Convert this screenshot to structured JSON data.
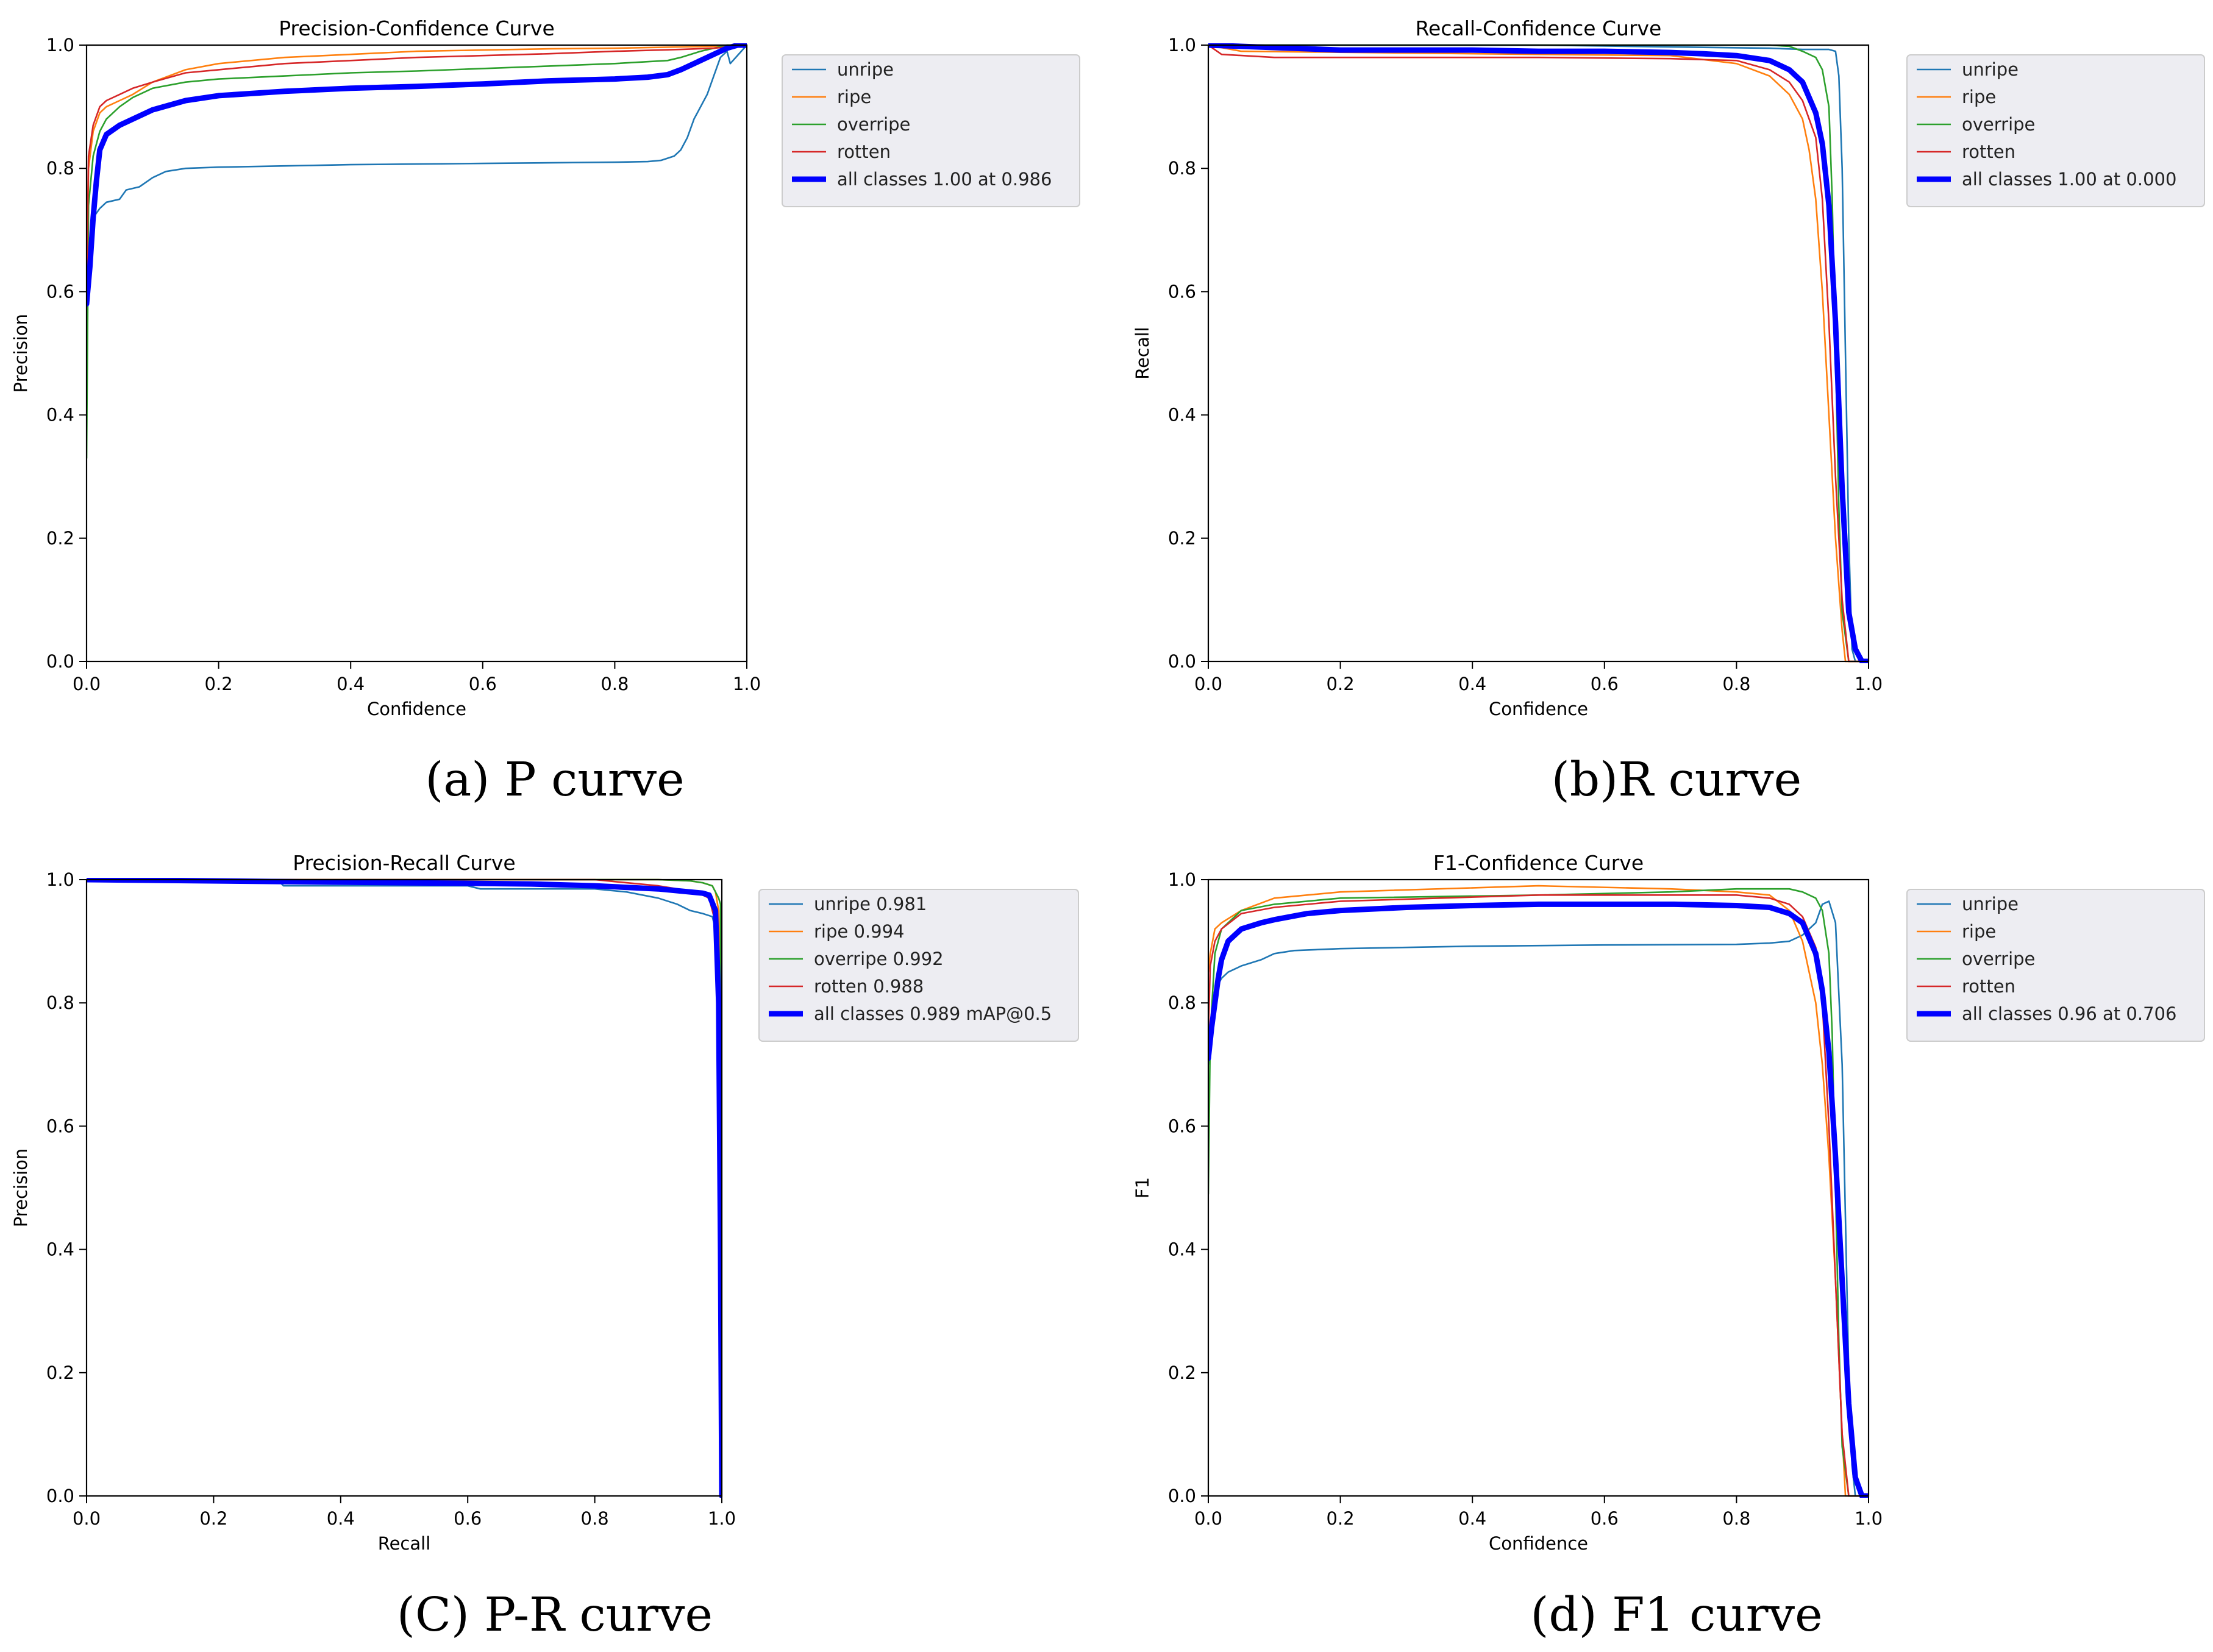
{
  "colors": {
    "unripe": "#1f77b4",
    "ripe": "#ff7f0e",
    "overripe": "#2ca02c",
    "rotten": "#d62728",
    "all": "#0000ff",
    "legend_bg": "#ededf2"
  },
  "chart_data": [
    {
      "id": "p",
      "type": "line",
      "title": "Precision-Confidence Curve",
      "xlabel": "Confidence",
      "ylabel": "Precision",
      "xlim": [
        0,
        1
      ],
      "ylim": [
        0,
        1
      ],
      "xticks": [
        "0.0",
        "0.2",
        "0.4",
        "0.6",
        "0.8",
        "1.0"
      ],
      "yticks": [
        "0.0",
        "0.2",
        "0.4",
        "0.6",
        "0.8",
        "1.0"
      ],
      "grid": false,
      "legend_position": "outside-right",
      "caption": "(a) P curve",
      "series": [
        {
          "name": "unripe",
          "color_key": "unripe",
          "bold": false,
          "x": [
            0,
            0.004,
            0.01,
            0.02,
            0.03,
            0.05,
            0.06,
            0.08,
            0.1,
            0.12,
            0.15,
            0.2,
            0.3,
            0.4,
            0.5,
            0.6,
            0.7,
            0.8,
            0.85,
            0.87,
            0.89,
            0.9,
            0.91,
            0.92,
            0.93,
            0.94,
            0.95,
            0.96,
            0.97,
            0.975,
            1.0
          ],
          "y": [
            0.58,
            0.68,
            0.72,
            0.735,
            0.745,
            0.75,
            0.765,
            0.77,
            0.785,
            0.795,
            0.8,
            0.802,
            0.804,
            0.806,
            0.807,
            0.808,
            0.809,
            0.81,
            0.811,
            0.813,
            0.82,
            0.83,
            0.85,
            0.88,
            0.9,
            0.92,
            0.95,
            0.98,
            0.99,
            0.97,
            1.0
          ]
        },
        {
          "name": "ripe",
          "color_key": "ripe",
          "bold": false,
          "x": [
            0,
            0.003,
            0.01,
            0.02,
            0.03,
            0.05,
            0.07,
            0.1,
            0.15,
            0.2,
            0.3,
            0.4,
            0.5,
            0.6,
            0.7,
            0.8,
            0.9,
            0.95,
            1.0
          ],
          "y": [
            0.6,
            0.8,
            0.86,
            0.89,
            0.9,
            0.91,
            0.92,
            0.94,
            0.96,
            0.97,
            0.98,
            0.985,
            0.99,
            0.992,
            0.994,
            0.995,
            0.997,
            0.998,
            1.0
          ]
        },
        {
          "name": "overripe",
          "color_key": "overripe",
          "bold": false,
          "x": [
            0,
            0.003,
            0.01,
            0.02,
            0.03,
            0.05,
            0.07,
            0.1,
            0.15,
            0.2,
            0.3,
            0.4,
            0.5,
            0.6,
            0.7,
            0.8,
            0.88,
            0.9,
            0.93,
            0.95,
            0.97,
            1.0
          ],
          "y": [
            0.33,
            0.74,
            0.82,
            0.86,
            0.88,
            0.9,
            0.915,
            0.93,
            0.94,
            0.945,
            0.95,
            0.955,
            0.958,
            0.962,
            0.966,
            0.97,
            0.975,
            0.98,
            0.99,
            0.995,
            1.0,
            1.0
          ]
        },
        {
          "name": "rotten",
          "color_key": "rotten",
          "bold": false,
          "x": [
            0,
            0.003,
            0.01,
            0.02,
            0.03,
            0.05,
            0.07,
            0.1,
            0.15,
            0.2,
            0.3,
            0.4,
            0.5,
            0.6,
            0.7,
            0.8,
            0.9,
            0.95,
            1.0
          ],
          "y": [
            0.6,
            0.82,
            0.87,
            0.9,
            0.91,
            0.92,
            0.93,
            0.94,
            0.955,
            0.96,
            0.97,
            0.975,
            0.98,
            0.983,
            0.986,
            0.99,
            0.993,
            0.995,
            1.0
          ]
        },
        {
          "name": "all classes 1.00 at 0.986",
          "color_key": "all",
          "bold": true,
          "x": [
            0,
            0.005,
            0.01,
            0.015,
            0.02,
            0.03,
            0.05,
            0.08,
            0.1,
            0.15,
            0.2,
            0.3,
            0.4,
            0.5,
            0.6,
            0.7,
            0.8,
            0.85,
            0.88,
            0.9,
            0.92,
            0.94,
            0.96,
            0.97,
            0.986,
            1.0
          ],
          "y": [
            0.58,
            0.64,
            0.72,
            0.78,
            0.83,
            0.855,
            0.87,
            0.885,
            0.895,
            0.91,
            0.918,
            0.925,
            0.93,
            0.933,
            0.937,
            0.942,
            0.945,
            0.948,
            0.952,
            0.96,
            0.97,
            0.98,
            0.99,
            0.995,
            1.0,
            1.0
          ]
        }
      ]
    },
    {
      "id": "r",
      "type": "line",
      "title": "Recall-Confidence Curve",
      "xlabel": "Confidence",
      "ylabel": "Recall",
      "xlim": [
        0,
        1
      ],
      "ylim": [
        0,
        1
      ],
      "xticks": [
        "0.0",
        "0.2",
        "0.4",
        "0.6",
        "0.8",
        "1.0"
      ],
      "yticks": [
        "0.0",
        "0.2",
        "0.4",
        "0.6",
        "0.8",
        "1.0"
      ],
      "grid": false,
      "legend_position": "outside-right",
      "caption": "(b)R curve",
      "series": [
        {
          "name": "unripe",
          "color_key": "unripe",
          "bold": false,
          "x": [
            0,
            0.5,
            0.85,
            0.9,
            0.92,
            0.94,
            0.95,
            0.955,
            0.96,
            0.965,
            0.97,
            0.975,
            0.98,
            1.0
          ],
          "y": [
            1.0,
            1.0,
            0.995,
            0.993,
            0.993,
            0.993,
            0.99,
            0.95,
            0.8,
            0.5,
            0.2,
            0.02,
            0.0,
            0.0
          ]
        },
        {
          "name": "ripe",
          "color_key": "ripe",
          "bold": false,
          "x": [
            0,
            0.05,
            0.5,
            0.7,
            0.8,
            0.85,
            0.88,
            0.9,
            0.91,
            0.92,
            0.93,
            0.94,
            0.95,
            0.96,
            0.965,
            1.0
          ],
          "y": [
            1.0,
            0.99,
            0.985,
            0.983,
            0.97,
            0.95,
            0.92,
            0.88,
            0.83,
            0.75,
            0.6,
            0.4,
            0.2,
            0.05,
            0.0,
            0.0
          ]
        },
        {
          "name": "overripe",
          "color_key": "overripe",
          "bold": false,
          "x": [
            0,
            0.5,
            0.8,
            0.85,
            0.88,
            0.9,
            0.92,
            0.93,
            0.94,
            0.945,
            0.95,
            0.955,
            0.96,
            0.97,
            1.0
          ],
          "y": [
            1.0,
            1.0,
            1.0,
            1.0,
            0.998,
            0.99,
            0.98,
            0.96,
            0.9,
            0.75,
            0.5,
            0.25,
            0.08,
            0.0,
            0.0
          ]
        },
        {
          "name": "rotten",
          "color_key": "rotten",
          "bold": false,
          "x": [
            0,
            0.02,
            0.1,
            0.5,
            0.7,
            0.8,
            0.85,
            0.88,
            0.9,
            0.92,
            0.93,
            0.94,
            0.95,
            0.96,
            0.97,
            1.0
          ],
          "y": [
            1.0,
            0.985,
            0.98,
            0.98,
            0.978,
            0.975,
            0.96,
            0.94,
            0.91,
            0.85,
            0.75,
            0.55,
            0.3,
            0.1,
            0.0,
            0.0
          ]
        },
        {
          "name": "all classes 1.00 at 0.000",
          "color_key": "all",
          "bold": true,
          "x": [
            0,
            0.2,
            0.4,
            0.5,
            0.6,
            0.7,
            0.75,
            0.8,
            0.85,
            0.88,
            0.9,
            0.92,
            0.93,
            0.94,
            0.95,
            0.96,
            0.97,
            0.98,
            0.99,
            1.0
          ],
          "y": [
            1.0,
            0.992,
            0.992,
            0.99,
            0.99,
            0.988,
            0.986,
            0.983,
            0.975,
            0.96,
            0.94,
            0.89,
            0.84,
            0.74,
            0.55,
            0.28,
            0.08,
            0.02,
            0.0,
            0.0
          ]
        }
      ]
    },
    {
      "id": "pr",
      "type": "line",
      "title": "Precision-Recall Curve",
      "xlabel": "Recall",
      "ylabel": "Precision",
      "xlim": [
        0,
        1
      ],
      "ylim": [
        0,
        1
      ],
      "xticks": [
        "0.0",
        "0.2",
        "0.4",
        "0.6",
        "0.8",
        "1.0"
      ],
      "yticks": [
        "0.0",
        "0.2",
        "0.4",
        "0.6",
        "0.8",
        "1.0"
      ],
      "grid": false,
      "legend_position": "outside-right",
      "caption": "(C) P-R curve",
      "series": [
        {
          "name": "unripe 0.981",
          "color_key": "unripe",
          "bold": false,
          "x": [
            0,
            0.3,
            0.31,
            0.6,
            0.62,
            0.8,
            0.85,
            0.9,
            0.93,
            0.95,
            0.97,
            0.985,
            0.995,
            1.0
          ],
          "y": [
            1.0,
            1.0,
            0.99,
            0.99,
            0.985,
            0.985,
            0.98,
            0.97,
            0.96,
            0.95,
            0.945,
            0.94,
            0.9,
            0.0
          ]
        },
        {
          "name": "ripe 0.994",
          "color_key": "ripe",
          "bold": false,
          "x": [
            0,
            0.5,
            0.8,
            0.9,
            0.95,
            0.97,
            0.985,
            0.99,
            0.995,
            0.998,
            1.0
          ],
          "y": [
            1.0,
            1.0,
            1.0,
            1.0,
            0.998,
            0.995,
            0.99,
            0.98,
            0.95,
            0.8,
            0.0
          ]
        },
        {
          "name": "overripe 0.992",
          "color_key": "overripe",
          "bold": false,
          "x": [
            0,
            0.5,
            0.8,
            0.9,
            0.95,
            0.97,
            0.985,
            0.995,
            0.998,
            1.0
          ],
          "y": [
            1.0,
            1.0,
            1.0,
            1.0,
            0.998,
            0.995,
            0.99,
            0.97,
            0.96,
            0.0
          ]
        },
        {
          "name": "rotten 0.988",
          "color_key": "rotten",
          "bold": false,
          "x": [
            0,
            0.5,
            0.8,
            0.85,
            0.9,
            0.93,
            0.95,
            0.97,
            0.98,
            0.99,
            0.993,
            0.997,
            1.0
          ],
          "y": [
            1.0,
            1.0,
            1.0,
            0.995,
            0.99,
            0.985,
            0.98,
            0.975,
            0.97,
            0.93,
            0.88,
            0.73,
            0.0
          ]
        },
        {
          "name": "all classes 0.989 mAP@0.5",
          "color_key": "all",
          "bold": true,
          "x": [
            0,
            0.5,
            0.7,
            0.8,
            0.9,
            0.95,
            0.97,
            0.98,
            0.99,
            0.995,
            0.998,
            1.0
          ],
          "y": [
            1.0,
            0.995,
            0.993,
            0.99,
            0.985,
            0.98,
            0.978,
            0.975,
            0.95,
            0.8,
            0.4,
            0.0
          ]
        }
      ]
    },
    {
      "id": "f1",
      "type": "line",
      "title": "F1-Confidence Curve",
      "xlabel": "Confidence",
      "ylabel": "F1",
      "xlim": [
        0,
        1
      ],
      "ylim": [
        0,
        1
      ],
      "xticks": [
        "0.0",
        "0.2",
        "0.4",
        "0.6",
        "0.8",
        "1.0"
      ],
      "yticks": [
        "0.0",
        "0.2",
        "0.4",
        "0.6",
        "0.8",
        "1.0"
      ],
      "grid": false,
      "legend_position": "outside-right",
      "caption": "(d) F1 curve",
      "series": [
        {
          "name": "unripe",
          "color_key": "unripe",
          "bold": false,
          "x": [
            0,
            0.005,
            0.01,
            0.02,
            0.03,
            0.05,
            0.08,
            0.1,
            0.13,
            0.2,
            0.4,
            0.6,
            0.8,
            0.85,
            0.88,
            0.9,
            0.92,
            0.93,
            0.94,
            0.95,
            0.96,
            0.965,
            0.97,
            0.975,
            0.98,
            1.0
          ],
          "y": [
            0.7,
            0.78,
            0.82,
            0.84,
            0.85,
            0.86,
            0.87,
            0.88,
            0.885,
            0.888,
            0.892,
            0.894,
            0.895,
            0.897,
            0.9,
            0.91,
            0.93,
            0.96,
            0.965,
            0.93,
            0.7,
            0.45,
            0.2,
            0.05,
            0.0,
            0.0
          ]
        },
        {
          "name": "ripe",
          "color_key": "ripe",
          "bold": false,
          "x": [
            0,
            0.003,
            0.01,
            0.02,
            0.05,
            0.1,
            0.2,
            0.5,
            0.7,
            0.8,
            0.85,
            0.88,
            0.9,
            0.92,
            0.93,
            0.94,
            0.95,
            0.96,
            0.965,
            1.0
          ],
          "y": [
            0.85,
            0.88,
            0.92,
            0.93,
            0.95,
            0.97,
            0.98,
            0.99,
            0.985,
            0.98,
            0.975,
            0.95,
            0.9,
            0.8,
            0.7,
            0.55,
            0.35,
            0.1,
            0.0,
            0.0
          ]
        },
        {
          "name": "overripe",
          "color_key": "overripe",
          "bold": false,
          "x": [
            0,
            0.003,
            0.01,
            0.02,
            0.05,
            0.1,
            0.2,
            0.5,
            0.7,
            0.8,
            0.88,
            0.9,
            0.92,
            0.93,
            0.94,
            0.945,
            0.95,
            0.955,
            0.96,
            0.97,
            1.0
          ],
          "y": [
            0.49,
            0.75,
            0.88,
            0.92,
            0.95,
            0.96,
            0.97,
            0.975,
            0.98,
            0.985,
            0.985,
            0.98,
            0.97,
            0.95,
            0.88,
            0.75,
            0.5,
            0.25,
            0.08,
            0.0,
            0.0
          ]
        },
        {
          "name": "rotten",
          "color_key": "rotten",
          "bold": false,
          "x": [
            0,
            0.003,
            0.01,
            0.02,
            0.05,
            0.1,
            0.2,
            0.5,
            0.7,
            0.8,
            0.85,
            0.88,
            0.9,
            0.92,
            0.93,
            0.94,
            0.95,
            0.96,
            0.97,
            1.0
          ],
          "y": [
            0.75,
            0.86,
            0.9,
            0.92,
            0.945,
            0.955,
            0.965,
            0.975,
            0.975,
            0.975,
            0.97,
            0.96,
            0.94,
            0.89,
            0.8,
            0.6,
            0.35,
            0.1,
            0.0,
            0.0
          ]
        },
        {
          "name": "all classes 0.96 at 0.706",
          "color_key": "all",
          "bold": true,
          "x": [
            0,
            0.005,
            0.01,
            0.015,
            0.02,
            0.03,
            0.05,
            0.08,
            0.1,
            0.15,
            0.2,
            0.3,
            0.4,
            0.5,
            0.6,
            0.706,
            0.8,
            0.85,
            0.88,
            0.9,
            0.92,
            0.93,
            0.94,
            0.95,
            0.96,
            0.97,
            0.98,
            0.99,
            1.0
          ],
          "y": [
            0.71,
            0.76,
            0.8,
            0.84,
            0.87,
            0.9,
            0.92,
            0.93,
            0.935,
            0.945,
            0.95,
            0.955,
            0.958,
            0.96,
            0.96,
            0.96,
            0.958,
            0.955,
            0.945,
            0.93,
            0.88,
            0.82,
            0.72,
            0.55,
            0.35,
            0.15,
            0.03,
            0.0,
            0.0
          ]
        }
      ]
    }
  ]
}
